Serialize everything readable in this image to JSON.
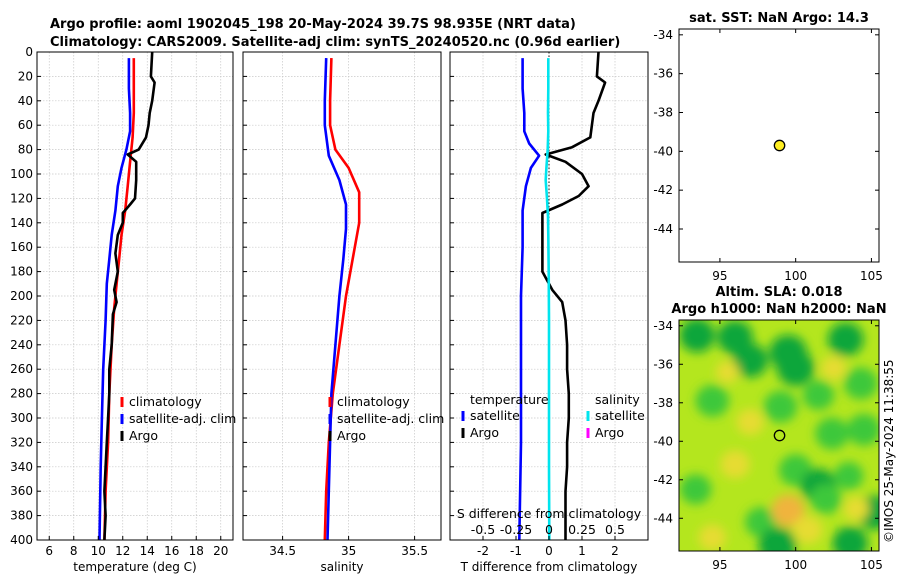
{
  "titles": {
    "line1": "Argo profile: aoml 1902045_198 20-May-2024 39.7S 98.935E (NRT data)",
    "line2": "Climatology: CARS2009. Satellite-adj clim: synTS_20240520.nc (0.96d earlier)",
    "sst_title": "sat. SST: NaN Argo: 14.3",
    "sla_title1": "Altim. SLA: 0.018",
    "sla_title2": "Argo h1000: NaN h2000: NaN",
    "side_label": "©IMOS 25-May-2024 11:38:55"
  },
  "colors": {
    "climatology": "#ff0000",
    "satellite": "#0000ff",
    "argo": "#000000",
    "salinity_satellite": "#00e5ee",
    "salinity_argo": "#ff00ff",
    "marker": "#ffee22"
  },
  "chart_data": [
    {
      "type": "line",
      "name": "temperature",
      "xlabel": "temperature (deg C)",
      "ylabel": "",
      "xlim": [
        5,
        21
      ],
      "ylim": [
        400,
        0
      ],
      "x_ticks": [
        6,
        8,
        10,
        12,
        14,
        16,
        18,
        20
      ],
      "y_ticks": [
        0,
        20,
        40,
        60,
        80,
        100,
        120,
        140,
        160,
        180,
        200,
        220,
        240,
        260,
        280,
        300,
        320,
        340,
        360,
        380,
        400
      ],
      "grid": true,
      "legend": [
        "climatology",
        "satellite-adj. clim",
        "Argo"
      ],
      "series": [
        {
          "name": "climatology",
          "color_key": "climatology",
          "points": [
            [
              12.9,
              5
            ],
            [
              12.9,
              30
            ],
            [
              12.9,
              50
            ],
            [
              12.8,
              70
            ],
            [
              12.6,
              90
            ],
            [
              12.4,
              110
            ],
            [
              12.2,
              130
            ],
            [
              11.9,
              150
            ],
            [
              11.7,
              170
            ],
            [
              11.5,
              190
            ],
            [
              11.3,
              210
            ],
            [
              11.1,
              240
            ],
            [
              10.9,
              280
            ],
            [
              10.8,
              320
            ],
            [
              10.6,
              360
            ],
            [
              10.5,
              400
            ]
          ]
        },
        {
          "name": "satellite-adj. clim",
          "color_key": "satellite",
          "points": [
            [
              12.5,
              5
            ],
            [
              12.5,
              30
            ],
            [
              12.6,
              50
            ],
            [
              12.6,
              65
            ],
            [
              12.3,
              80
            ],
            [
              11.9,
              95
            ],
            [
              11.6,
              110
            ],
            [
              11.4,
              130
            ],
            [
              11.1,
              150
            ],
            [
              10.9,
              170
            ],
            [
              10.7,
              190
            ],
            [
              10.6,
              220
            ],
            [
              10.4,
              260
            ],
            [
              10.3,
              300
            ],
            [
              10.2,
              340
            ],
            [
              10.1,
              400
            ]
          ]
        },
        {
          "name": "Argo",
          "color_key": "argo",
          "points": [
            [
              14.4,
              0
            ],
            [
              14.3,
              20
            ],
            [
              14.6,
              25
            ],
            [
              14.4,
              40
            ],
            [
              14.2,
              50
            ],
            [
              14.1,
              60
            ],
            [
              13.9,
              70
            ],
            [
              13.3,
              80
            ],
            [
              12.4,
              84
            ],
            [
              13.1,
              90
            ],
            [
              13.1,
              105
            ],
            [
              13.0,
              120
            ],
            [
              12.6,
              125
            ],
            [
              12.0,
              132
            ],
            [
              12.0,
              140
            ],
            [
              11.6,
              150
            ],
            [
              11.4,
              165
            ],
            [
              11.6,
              180
            ],
            [
              11.3,
              195
            ],
            [
              11.5,
              205
            ],
            [
              11.2,
              215
            ],
            [
              11.1,
              240
            ],
            [
              10.9,
              260
            ],
            [
              10.9,
              280
            ],
            [
              10.8,
              300
            ],
            [
              10.7,
              320
            ],
            [
              10.6,
              340
            ],
            [
              10.5,
              360
            ],
            [
              10.6,
              380
            ],
            [
              10.5,
              400
            ]
          ]
        }
      ]
    },
    {
      "type": "line",
      "name": "salinity",
      "xlabel": "salinity",
      "ylabel": "",
      "xlim": [
        34.2,
        35.7
      ],
      "ylim": [
        400,
        0
      ],
      "x_ticks": [
        34.5,
        35,
        35.5
      ],
      "y_ticks": [
        0,
        20,
        40,
        60,
        80,
        100,
        120,
        140,
        160,
        180,
        200,
        220,
        240,
        260,
        280,
        300,
        320,
        340,
        360,
        380,
        400
      ],
      "grid": true,
      "legend": [
        "climatology",
        "satellite-adj. clim",
        "Argo"
      ],
      "series": [
        {
          "name": "climatology",
          "color_key": "climatology",
          "points": [
            [
              34.87,
              5
            ],
            [
              34.86,
              40
            ],
            [
              34.86,
              60
            ],
            [
              34.9,
              80
            ],
            [
              35.0,
              95
            ],
            [
              35.08,
              115
            ],
            [
              35.08,
              140
            ],
            [
              35.03,
              170
            ],
            [
              34.98,
              200
            ],
            [
              34.93,
              240
            ],
            [
              34.88,
              280
            ],
            [
              34.85,
              320
            ],
            [
              34.83,
              360
            ],
            [
              34.82,
              400
            ]
          ]
        },
        {
          "name": "satellite-adj. clim",
          "color_key": "satellite",
          "points": [
            [
              34.83,
              5
            ],
            [
              34.82,
              40
            ],
            [
              34.82,
              60
            ],
            [
              34.85,
              85
            ],
            [
              34.93,
              105
            ],
            [
              34.98,
              125
            ],
            [
              34.98,
              145
            ],
            [
              34.96,
              170
            ],
            [
              34.93,
              200
            ],
            [
              34.9,
              240
            ],
            [
              34.87,
              280
            ],
            [
              34.86,
              320
            ],
            [
              34.85,
              360
            ],
            [
              34.84,
              400
            ]
          ]
        }
      ]
    },
    {
      "type": "line",
      "name": "difference",
      "xlabel": "T difference from climatology",
      "top_xlabel": "S difference from climatology",
      "xlim": [
        -3,
        3
      ],
      "top_xlim": [
        -0.75,
        0.75
      ],
      "ylim": [
        400,
        0
      ],
      "x_ticks": [
        -2,
        -1,
        0,
        1,
        2
      ],
      "top_x_ticks": [
        "-0.5",
        "-0.25",
        "0",
        "0.25",
        "0.5"
      ],
      "y_ticks": [
        0,
        20,
        40,
        60,
        80,
        100,
        120,
        140,
        160,
        180,
        200,
        220,
        240,
        260,
        280,
        300,
        320,
        340,
        360,
        380,
        400
      ],
      "grid": true,
      "legend_temperature": {
        "header": "temperature",
        "items": [
          "satellite",
          "Argo"
        ]
      },
      "legend_salinity": {
        "header": "salinity",
        "items": [
          "satellite",
          "Argo"
        ]
      },
      "series": [
        {
          "name": "T satellite",
          "color_key": "satellite",
          "points": [
            [
              -0.8,
              5
            ],
            [
              -0.8,
              30
            ],
            [
              -0.75,
              50
            ],
            [
              -0.75,
              65
            ],
            [
              -0.6,
              75
            ],
            [
              -0.3,
              85
            ],
            [
              -0.55,
              95
            ],
            [
              -0.7,
              110
            ],
            [
              -0.8,
              130
            ],
            [
              -0.8,
              160
            ],
            [
              -0.85,
              200
            ],
            [
              -0.85,
              260
            ],
            [
              -0.85,
              320
            ],
            [
              -0.9,
              400
            ]
          ]
        },
        {
          "name": "T Argo",
          "color_key": "argo",
          "points": [
            [
              1.5,
              0
            ],
            [
              1.45,
              20
            ],
            [
              1.7,
              25
            ],
            [
              1.5,
              40
            ],
            [
              1.35,
              50
            ],
            [
              1.3,
              60
            ],
            [
              1.25,
              70
            ],
            [
              0.7,
              78
            ],
            [
              -0.1,
              84
            ],
            [
              0.5,
              90
            ],
            [
              1.0,
              100
            ],
            [
              1.2,
              110
            ],
            [
              0.9,
              118
            ],
            [
              0.4,
              125
            ],
            [
              -0.2,
              132
            ],
            [
              -0.2,
              140
            ],
            [
              -0.2,
              160
            ],
            [
              -0.2,
              180
            ],
            [
              0.1,
              195
            ],
            [
              0.4,
              205
            ],
            [
              0.5,
              220
            ],
            [
              0.55,
              240
            ],
            [
              0.55,
              260
            ],
            [
              0.6,
              280
            ],
            [
              0.6,
              300
            ],
            [
              0.55,
              320
            ],
            [
              0.55,
              340
            ],
            [
              0.5,
              360
            ],
            [
              0.5,
              380
            ],
            [
              0.5,
              400
            ]
          ]
        },
        {
          "name": "S satellite",
          "color_key": "salinity_satellite",
          "points": [
            [
              -0.02,
              5
            ],
            [
              -0.02,
              30
            ],
            [
              -0.03,
              50
            ],
            [
              -0.02,
              65
            ],
            [
              -0.04,
              80
            ],
            [
              -0.08,
              95
            ],
            [
              -0.1,
              105
            ],
            [
              -0.06,
              120
            ],
            [
              -0.03,
              135
            ],
            [
              -0.02,
              150
            ],
            [
              -0.01,
              180
            ],
            [
              0.0,
              220
            ],
            [
              0.0,
              280
            ],
            [
              0.0,
              340
            ],
            [
              0.01,
              400
            ]
          ]
        }
      ]
    },
    {
      "type": "scatter",
      "name": "sst-map",
      "title": "sat. SST: NaN Argo: 14.3",
      "xlim": [
        92.3,
        105.5
      ],
      "ylim": [
        -45.7,
        -33.7
      ],
      "x_ticks": [
        95,
        100,
        105
      ],
      "y_ticks": [
        -34,
        -36,
        -38,
        -40,
        -42,
        -44
      ],
      "points": [
        {
          "x": 98.935,
          "y": -39.7,
          "label": "Argo float"
        }
      ]
    },
    {
      "type": "heatmap",
      "name": "sla-map",
      "title": "Altim. SLA: 0.018 / Argo h1000: NaN h2000: NaN",
      "xlim": [
        92.3,
        105.5
      ],
      "ylim": [
        -45.7,
        -33.7
      ],
      "x_ticks": [
        95,
        100,
        105
      ],
      "y_ticks": [
        -34,
        -36,
        -38,
        -40,
        -42,
        -44
      ],
      "points": [
        {
          "x": 98.935,
          "y": -39.7,
          "label": "Argo float"
        }
      ],
      "blobs": [
        {
          "x": 93.5,
          "y": -34.5,
          "v": 0.9
        },
        {
          "x": 96.0,
          "y": -34.6,
          "v": 0.9
        },
        {
          "x": 97.0,
          "y": -35.8,
          "v": 0.9
        },
        {
          "x": 99.5,
          "y": -35.4,
          "v": 1.0
        },
        {
          "x": 100.0,
          "y": -36.2,
          "v": 1.0
        },
        {
          "x": 103.3,
          "y": -34.7,
          "v": 0.9
        },
        {
          "x": 104.3,
          "y": -37.0,
          "v": 0.8
        },
        {
          "x": 94.5,
          "y": -37.9,
          "v": 0.8
        },
        {
          "x": 99.0,
          "y": -38.2,
          "v": 0.8
        },
        {
          "x": 101.5,
          "y": -37.6,
          "v": 0.7
        },
        {
          "x": 102.4,
          "y": -39.6,
          "v": 0.8
        },
        {
          "x": 104.5,
          "y": -39.4,
          "v": 0.8
        },
        {
          "x": 100.0,
          "y": -41.5,
          "v": 0.8
        },
        {
          "x": 101.5,
          "y": -42.3,
          "v": 0.9
        },
        {
          "x": 102.0,
          "y": -43.0,
          "v": 0.7
        },
        {
          "x": 93.4,
          "y": -42.5,
          "v": 0.7
        },
        {
          "x": 97.7,
          "y": -44.2,
          "v": 0.7
        },
        {
          "x": 98.8,
          "y": -45.4,
          "v": 1.0
        },
        {
          "x": 103.6,
          "y": -45.3,
          "v": 0.9
        },
        {
          "x": 105.2,
          "y": -43.7,
          "v": 0.9
        },
        {
          "x": 103.5,
          "y": -41.8,
          "v": 0.6
        },
        {
          "x": 96.0,
          "y": -41.2,
          "v": -0.6
        },
        {
          "x": 99.5,
          "y": -43.6,
          "v": -0.8
        },
        {
          "x": 100.8,
          "y": -44.6,
          "v": -0.6
        },
        {
          "x": 94.5,
          "y": -45.0,
          "v": -0.5
        },
        {
          "x": 97.0,
          "y": -39.0,
          "v": -0.5
        },
        {
          "x": 102.5,
          "y": -36.2,
          "v": -0.4
        },
        {
          "x": 95.5,
          "y": -36.4,
          "v": -0.3
        },
        {
          "x": 104.0,
          "y": -43.5,
          "v": -0.4
        }
      ]
    }
  ]
}
